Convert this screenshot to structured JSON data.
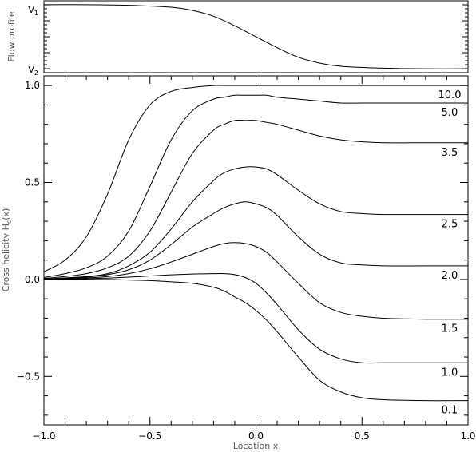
{
  "chart_data": [
    {
      "panel": "top",
      "type": "line",
      "ylabel": "Flow profile",
      "y_tick_labels": [
        {
          "main": "V",
          "sub": "1",
          "value": 1
        },
        {
          "main": "V",
          "sub": "2",
          "value": 0
        }
      ],
      "xlim": [
        -1.0,
        1.0
      ],
      "ylim": [
        -0.06,
        1.06
      ],
      "grid": false,
      "series": [
        {
          "x": [
            -1.0,
            -0.8,
            -0.6,
            -0.4,
            -0.3,
            -0.2,
            -0.1,
            0.0,
            0.1,
            0.2,
            0.3,
            0.4,
            0.6,
            0.8,
            1.0
          ],
          "values": [
            1.0,
            1.0,
            0.99,
            0.96,
            0.91,
            0.82,
            0.67,
            0.5,
            0.33,
            0.18,
            0.09,
            0.04,
            0.01,
            0.0,
            0.0
          ]
        }
      ]
    },
    {
      "panel": "bottom",
      "type": "line",
      "xlabel": "Location x",
      "ylabel": "Cross helicity H",
      "ylabel_sub": "c",
      "ylabel_suffix": "(x)",
      "xlim": [
        -1.0,
        1.0
      ],
      "ylim": [
        -0.75,
        1.05
      ],
      "x_ticks": [
        -1.0,
        -0.5,
        0.0,
        0.5,
        1.0
      ],
      "x_tick_labels": [
        "−1.0",
        "−0.5",
        "0.0",
        "0.5",
        "1.0"
      ],
      "y_ticks": [
        -0.5,
        0.0,
        0.5,
        1.0
      ],
      "y_tick_labels": [
        "−0.5",
        "0.0",
        "0.5",
        "1.0"
      ],
      "grid": false,
      "x": [
        -1.0,
        -0.9,
        -0.8,
        -0.7,
        -0.6,
        -0.5,
        -0.4,
        -0.3,
        -0.2,
        -0.15,
        -0.1,
        -0.05,
        0.0,
        0.05,
        0.1,
        0.2,
        0.3,
        0.4,
        0.5,
        0.6,
        0.8,
        1.0
      ],
      "series": [
        {
          "label": "10.0",
          "values": [
            0.04,
            0.1,
            0.22,
            0.44,
            0.72,
            0.9,
            0.97,
            0.99,
            1.0,
            1.0,
            1.0,
            1.0,
            1.0,
            1.0,
            1.0,
            1.0,
            1.0,
            1.0,
            1.0,
            1.0,
            1.0,
            1.0
          ]
        },
        {
          "label": "5.0",
          "values": [
            0.01,
            0.03,
            0.06,
            0.12,
            0.25,
            0.48,
            0.72,
            0.87,
            0.93,
            0.94,
            0.95,
            0.95,
            0.95,
            0.95,
            0.94,
            0.93,
            0.92,
            0.91,
            0.91,
            0.91,
            0.91,
            0.91
          ]
        },
        {
          "label": "3.5",
          "values": [
            0.005,
            0.015,
            0.03,
            0.06,
            0.12,
            0.25,
            0.45,
            0.65,
            0.77,
            0.8,
            0.82,
            0.82,
            0.82,
            0.81,
            0.8,
            0.77,
            0.74,
            0.72,
            0.71,
            0.705,
            0.705,
            0.705
          ]
        },
        {
          "label": "2.5",
          "values": [
            0.003,
            0.008,
            0.015,
            0.03,
            0.07,
            0.14,
            0.26,
            0.4,
            0.51,
            0.55,
            0.57,
            0.58,
            0.58,
            0.57,
            0.54,
            0.46,
            0.39,
            0.35,
            0.34,
            0.335,
            0.335,
            0.335
          ]
        },
        {
          "label": "2.0",
          "values": [
            0.002,
            0.006,
            0.012,
            0.025,
            0.05,
            0.1,
            0.18,
            0.27,
            0.34,
            0.37,
            0.39,
            0.4,
            0.39,
            0.37,
            0.33,
            0.22,
            0.13,
            0.085,
            0.075,
            0.07,
            0.07,
            0.07
          ]
        },
        {
          "label": "1.5",
          "values": [
            0.001,
            0.004,
            0.008,
            0.015,
            0.03,
            0.055,
            0.09,
            0.13,
            0.17,
            0.185,
            0.19,
            0.185,
            0.17,
            0.14,
            0.09,
            -0.02,
            -0.12,
            -0.17,
            -0.19,
            -0.2,
            -0.205,
            -0.205
          ]
        },
        {
          "label": "1.0",
          "values": [
            0.0,
            0.002,
            0.004,
            0.007,
            0.012,
            0.018,
            0.024,
            0.028,
            0.03,
            0.03,
            0.025,
            0.01,
            -0.02,
            -0.07,
            -0.13,
            -0.26,
            -0.36,
            -0.41,
            -0.43,
            -0.43,
            -0.43,
            -0.43
          ]
        },
        {
          "label": "0.1",
          "values": [
            0.0,
            0.0,
            0.0,
            0.0,
            -0.003,
            -0.006,
            -0.012,
            -0.02,
            -0.04,
            -0.06,
            -0.09,
            -0.12,
            -0.16,
            -0.21,
            -0.27,
            -0.4,
            -0.52,
            -0.58,
            -0.61,
            -0.62,
            -0.625,
            -0.625
          ]
        }
      ]
    }
  ]
}
